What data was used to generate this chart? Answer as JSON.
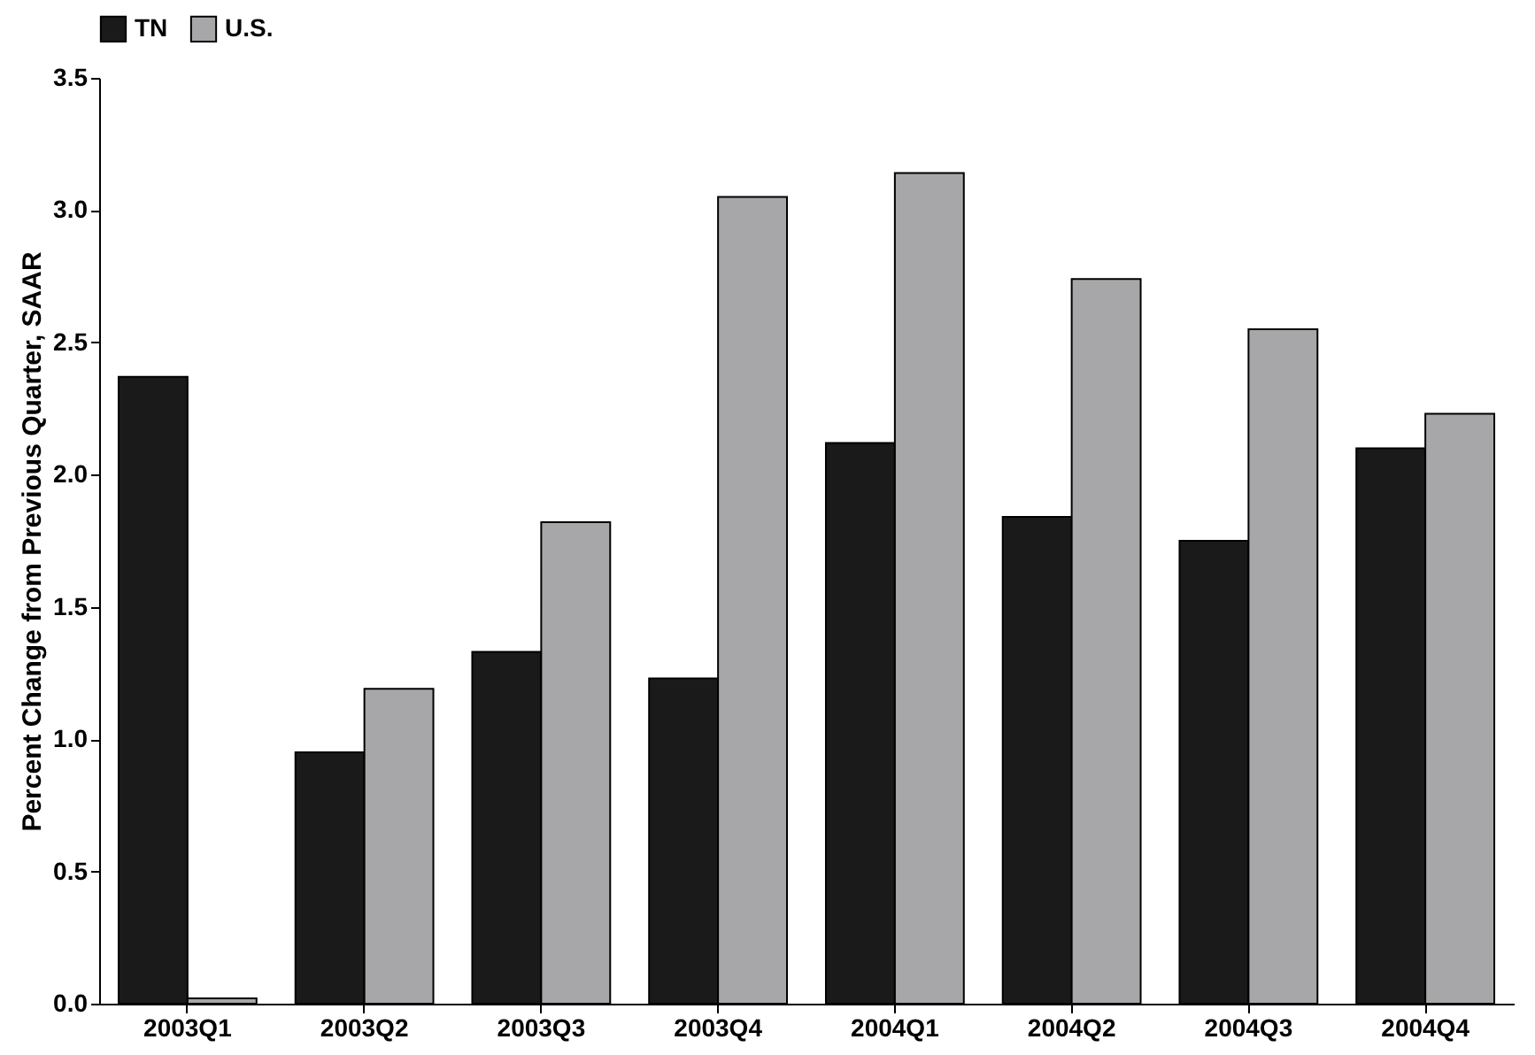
{
  "chart_data": {
    "type": "bar",
    "ylabel": "Percent Change from Previous Quarter, SAAR",
    "categories": [
      "2003Q1",
      "2003Q2",
      "2003Q3",
      "2003Q4",
      "2004Q1",
      "2004Q2",
      "2004Q3",
      "2004Q4"
    ],
    "series": [
      {
        "name": "TN",
        "color": "#1a1a1a",
        "values": [
          2.37,
          0.95,
          1.33,
          1.23,
          2.12,
          1.84,
          1.75,
          2.1
        ]
      },
      {
        "name": "U.S.",
        "color": "#a7a7a9",
        "values": [
          0.02,
          1.19,
          1.82,
          3.05,
          3.14,
          2.74,
          2.55,
          2.23
        ]
      }
    ],
    "ylim": [
      0,
      3.5
    ],
    "yticks": [
      {
        "value": 0,
        "label": "0.0"
      },
      {
        "value": 0.5,
        "label": "0.5"
      },
      {
        "value": 1,
        "label": "1.0"
      },
      {
        "value": 1.5,
        "label": "1.5"
      },
      {
        "value": 2,
        "label": "2.0"
      },
      {
        "value": 2.5,
        "label": "2.5"
      },
      {
        "value": 3,
        "label": "3.0"
      },
      {
        "value": 3.5,
        "label": "3.5"
      }
    ],
    "grid": false,
    "legend": "top"
  }
}
